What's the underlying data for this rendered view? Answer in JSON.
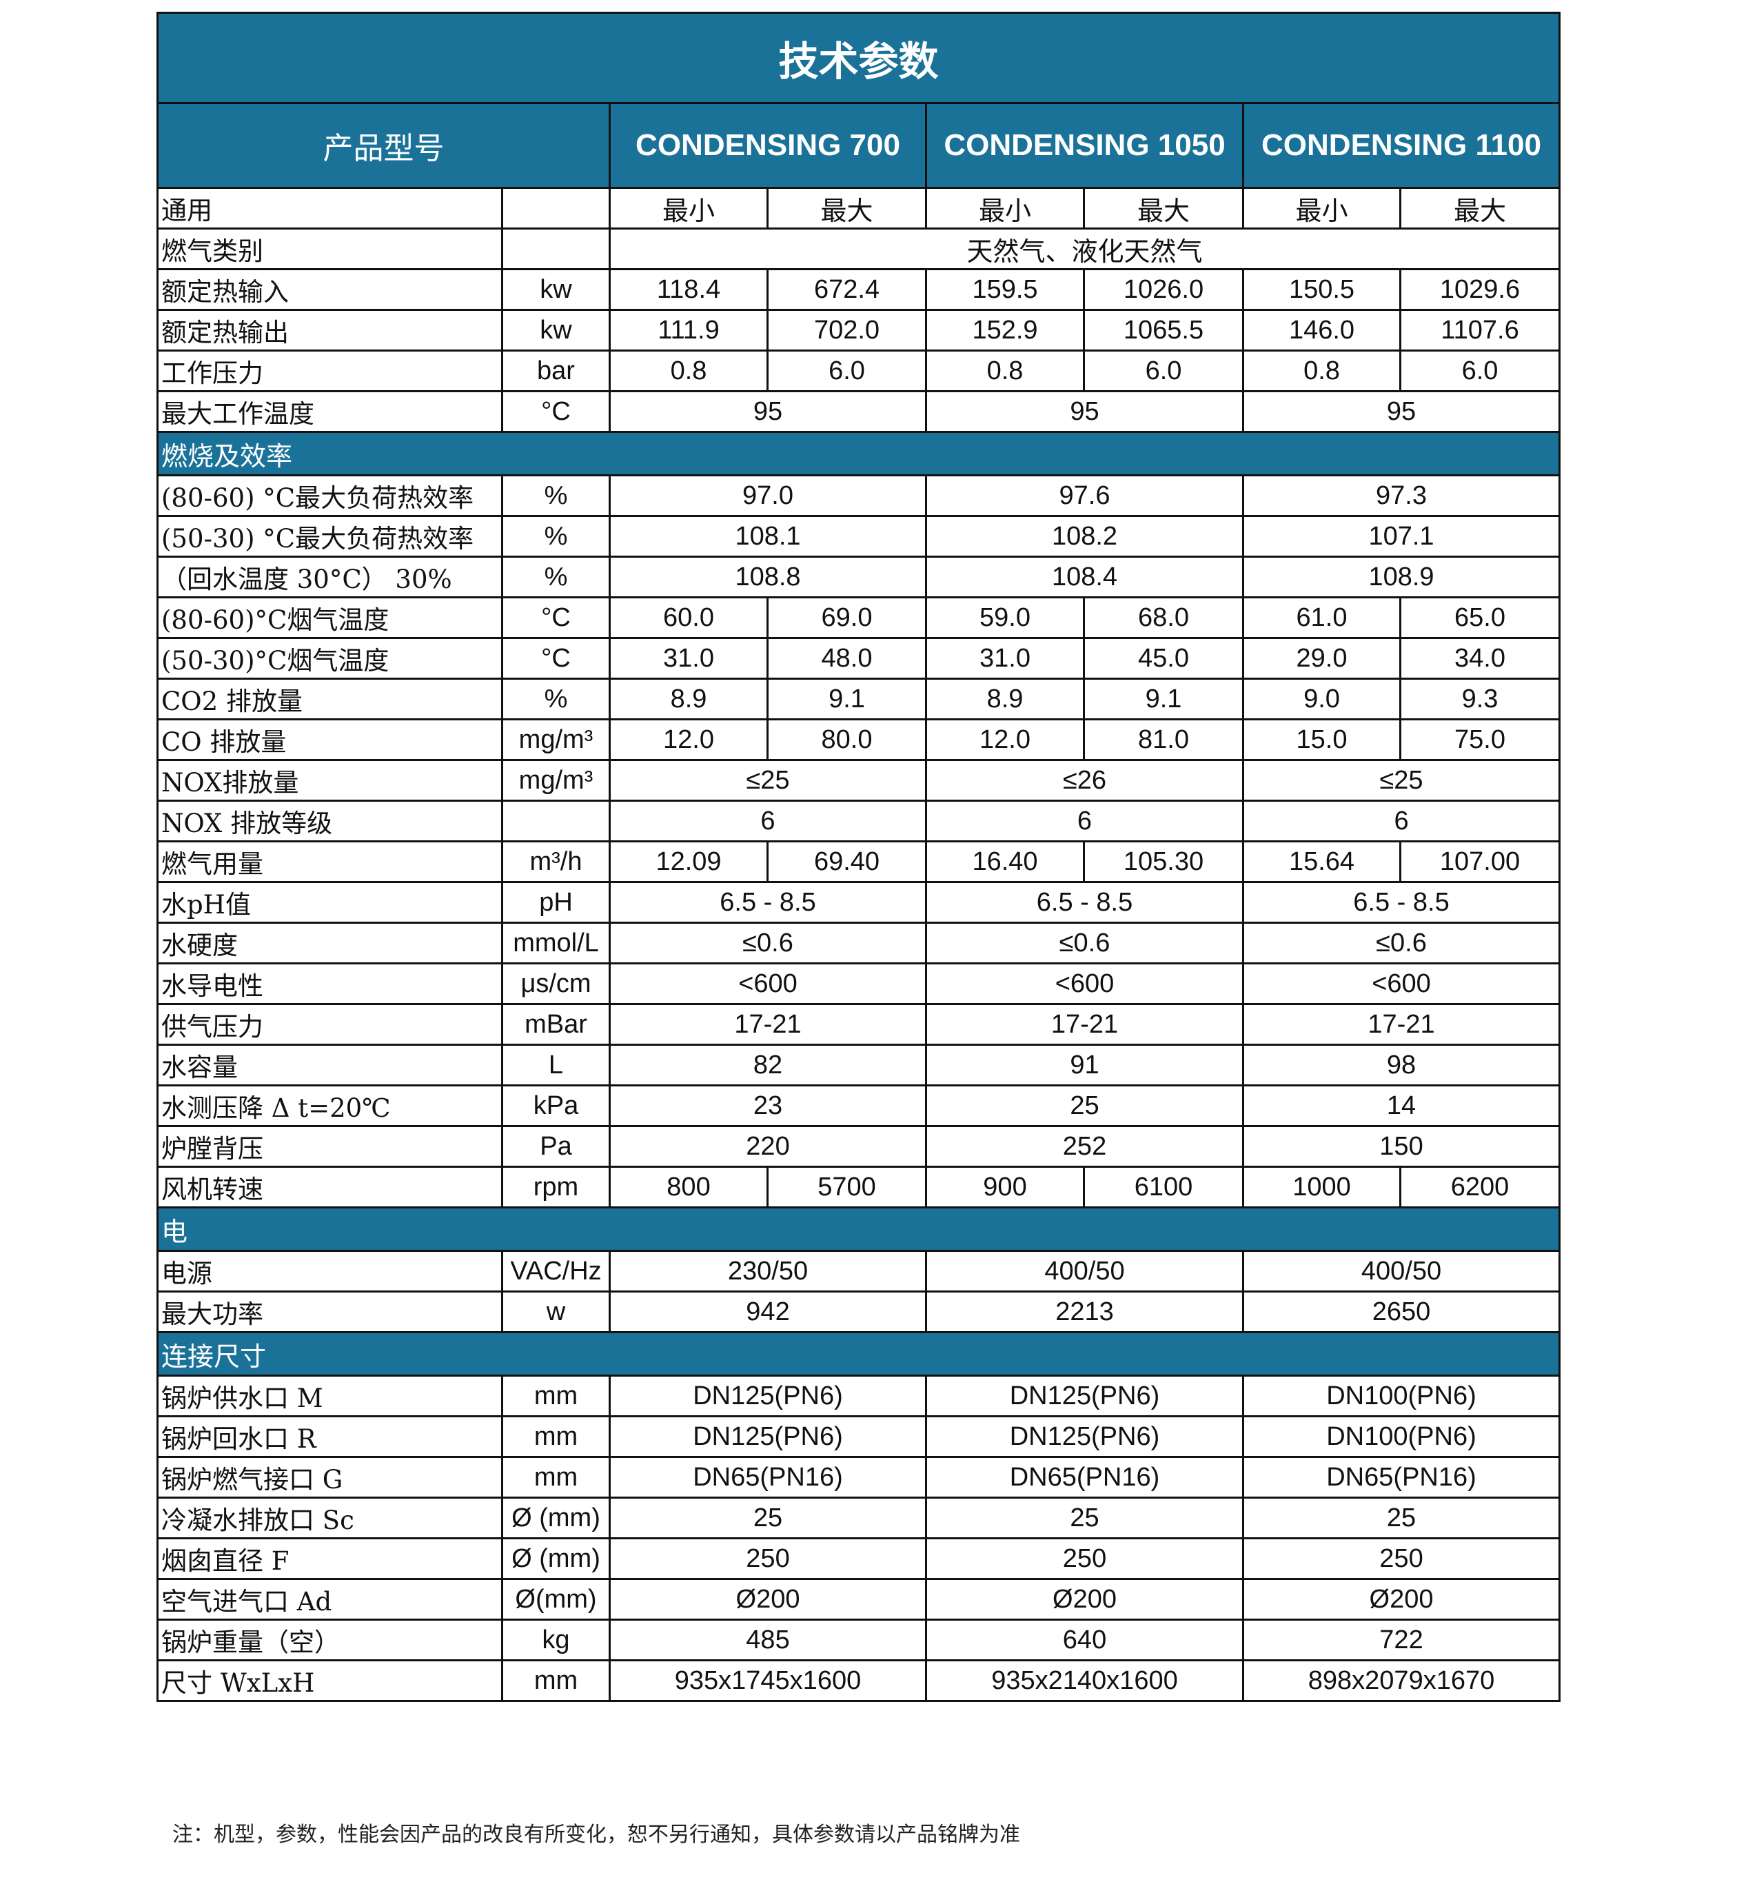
{
  "title": "技术参数",
  "header": {
    "label": "产品型号",
    "models": [
      "CONDENSING 700",
      "CONDENSING 1050",
      "CONDENSING 1100"
    ]
  },
  "rows": [
    {
      "label": "通用",
      "values": [
        "最小",
        "最大",
        "最小",
        "最大",
        "最小",
        "最大"
      ]
    },
    {
      "label": "燃气类别",
      "values": [
        "天然气、液化天然气"
      ]
    },
    {
      "label": "额定热输入",
      "unit": "kw",
      "values": [
        "118.4",
        "672.4",
        "159.5",
        "1026.0",
        "150.5",
        "1029.6"
      ]
    },
    {
      "label": "额定热输出",
      "unit": "kw",
      "values": [
        "111.9",
        "702.0",
        "152.9",
        "1065.5",
        "146.0",
        "1107.6"
      ]
    },
    {
      "label": "工作压力",
      "unit": "bar",
      "values": [
        "0.8",
        "6.0",
        "0.8",
        "6.0",
        "0.8",
        "6.0"
      ]
    },
    {
      "label": "最大工作温度",
      "unit": "°C",
      "values": [
        "95",
        "95",
        "95"
      ]
    },
    {
      "section": "燃烧及效率"
    },
    {
      "label": "(80-60) °C最大负荷热效率",
      "unit": "%",
      "values": [
        "97.0",
        "97.6",
        "97.3"
      ]
    },
    {
      "label": "(50-30) °C最大负荷热效率",
      "unit": "%",
      "values": [
        "108.1",
        "108.2",
        "107.1"
      ]
    },
    {
      "label": "（回水温度 30°C） 30%",
      "unit": "%",
      "values": [
        "108.8",
        "108.4",
        "108.9"
      ]
    },
    {
      "label": "(80-60)°C烟气温度",
      "unit": "°C",
      "values": [
        "60.0",
        "69.0",
        "59.0",
        "68.0",
        "61.0",
        "65.0"
      ]
    },
    {
      "label": "(50-30)°C烟气温度",
      "unit": "°C",
      "values": [
        "31.0",
        "48.0",
        "31.0",
        "45.0",
        "29.0",
        "34.0"
      ]
    },
    {
      "label": "CO2 排放量",
      "unit": "%",
      "values": [
        "8.9",
        "9.1",
        "8.9",
        "9.1",
        "9.0",
        "9.3"
      ]
    },
    {
      "label": "CO 排放量",
      "unit": "mg/m³",
      "values": [
        "12.0",
        "80.0",
        "12.0",
        "81.0",
        "15.0",
        "75.0"
      ]
    },
    {
      "label": "NOX排放量",
      "unit": "mg/m³",
      "values": [
        "≤25",
        "≤26",
        "≤25"
      ]
    },
    {
      "label": "NOX 排放等级",
      "values": [
        "6",
        "6",
        "6"
      ]
    },
    {
      "label": "燃气用量",
      "unit": "m³/h",
      "values": [
        "12.09",
        "69.40",
        "16.40",
        "105.30",
        "15.64",
        "107.00"
      ]
    },
    {
      "label": "水pH值",
      "unit": "pH",
      "values": [
        "6.5 - 8.5",
        "6.5 - 8.5",
        "6.5 - 8.5"
      ]
    },
    {
      "label": "水硬度",
      "unit": "mmol/L",
      "values": [
        "≤0.6",
        "≤0.6",
        "≤0.6"
      ]
    },
    {
      "label": "水导电性",
      "unit": "μs/cm",
      "values": [
        "<600",
        "<600",
        "<600"
      ]
    },
    {
      "label": "供气压力",
      "unit": "mBar",
      "values": [
        "17-21",
        "17-21",
        "17-21"
      ]
    },
    {
      "label": "水容量",
      "unit": "L",
      "values": [
        "82",
        "91",
        "98"
      ]
    },
    {
      "label": "水测压降 Δ t=20℃",
      "unit": "kPa",
      "values": [
        "23",
        "25",
        "14"
      ]
    },
    {
      "label": "炉膛背压",
      "unit": "Pa",
      "values": [
        "220",
        "252",
        "150"
      ]
    },
    {
      "label": "风机转速",
      "unit": "rpm",
      "values": [
        "800",
        "5700",
        "900",
        "6100",
        "1000",
        "6200"
      ]
    },
    {
      "section": "电"
    },
    {
      "label": "电源",
      "unit": "VAC/Hz",
      "values": [
        "230/50",
        "400/50",
        "400/50"
      ]
    },
    {
      "label": "最大功率",
      "unit": "w",
      "values": [
        "942",
        "2213",
        "2650"
      ]
    },
    {
      "section": "连接尺寸"
    },
    {
      "label": "锅炉供水口  M",
      "unit": "mm",
      "values": [
        "DN125(PN6)",
        "DN125(PN6)",
        "DN100(PN6)"
      ]
    },
    {
      "label": "锅炉回水口  R",
      "unit": "mm",
      "values": [
        "DN125(PN6)",
        "DN125(PN6)",
        "DN100(PN6)"
      ]
    },
    {
      "label": "锅炉燃气接口  G",
      "unit": "mm",
      "values": [
        "DN65(PN16)",
        "DN65(PN16)",
        "DN65(PN16)"
      ]
    },
    {
      "label": "冷凝水排放口  Sc",
      "unit": "Ø (mm)",
      "values": [
        "25",
        "25",
        "25"
      ]
    },
    {
      "label": "烟囱直径  F",
      "unit": "Ø (mm)",
      "values": [
        "250",
        "250",
        "250"
      ]
    },
    {
      "label": "空气进气口  Ad",
      "unit": "Ø(mm)",
      "values": [
        "Ø200",
        "Ø200",
        "Ø200"
      ]
    },
    {
      "label": "锅炉重量（空）",
      "unit": "kg",
      "values": [
        "485",
        "640",
        "722"
      ]
    },
    {
      "label": "尺寸 WxLxH",
      "unit": "mm",
      "values": [
        "935x1745x1600",
        "935x2140x1600",
        "898x2079x1670"
      ]
    }
  ],
  "note": "注：机型，参数，性能会因产品的改良有所变化，恕不另行通知，具体参数请以产品铭牌为准"
}
